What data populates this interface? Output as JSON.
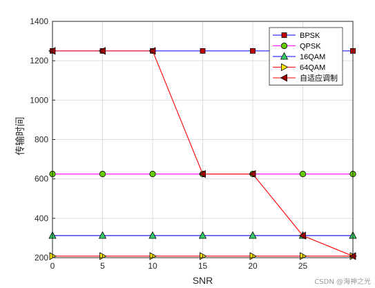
{
  "chart_data": {
    "type": "line",
    "xlabel": "SNR",
    "ylabel": "传输时间",
    "xlim": [
      0,
      30
    ],
    "ylim": [
      200,
      1400
    ],
    "x_ticks": [
      0,
      5,
      10,
      15,
      20,
      25
    ],
    "y_ticks": [
      200,
      400,
      600,
      800,
      1000,
      1200,
      1400
    ],
    "grid": true,
    "legend_position": "top-right",
    "x": [
      0,
      5,
      10,
      15,
      20,
      25,
      30
    ],
    "series": [
      {
        "name": "BPSK",
        "color": "#0000ff",
        "marker": "square",
        "marker_color": "#c00000",
        "values": [
          1250,
          1250,
          1250,
          1250,
          1250,
          1250,
          1250
        ]
      },
      {
        "name": "QPSK",
        "color": "#ff00ff",
        "marker": "circle",
        "marker_color": "#66cc00",
        "values": [
          625,
          625,
          625,
          625,
          625,
          625,
          625
        ]
      },
      {
        "name": "16QAM",
        "color": "#0000ff",
        "marker": "triangle-up",
        "marker_color": "#33cc66",
        "values": [
          312,
          312,
          312,
          312,
          312,
          312,
          312
        ]
      },
      {
        "name": "64QAM",
        "color": "#ff0000",
        "marker": "triangle-right",
        "marker_color": "#ffe600",
        "values": [
          208,
          208,
          208,
          208,
          208,
          208,
          208
        ]
      },
      {
        "name": "自适应调制",
        "color": "#ff0000",
        "marker": "triangle-left",
        "marker_color": "#a00000",
        "values": [
          1250,
          1250,
          1250,
          625,
          625,
          312,
          208
        ]
      }
    ]
  },
  "watermark": "CSDN @海神之光"
}
